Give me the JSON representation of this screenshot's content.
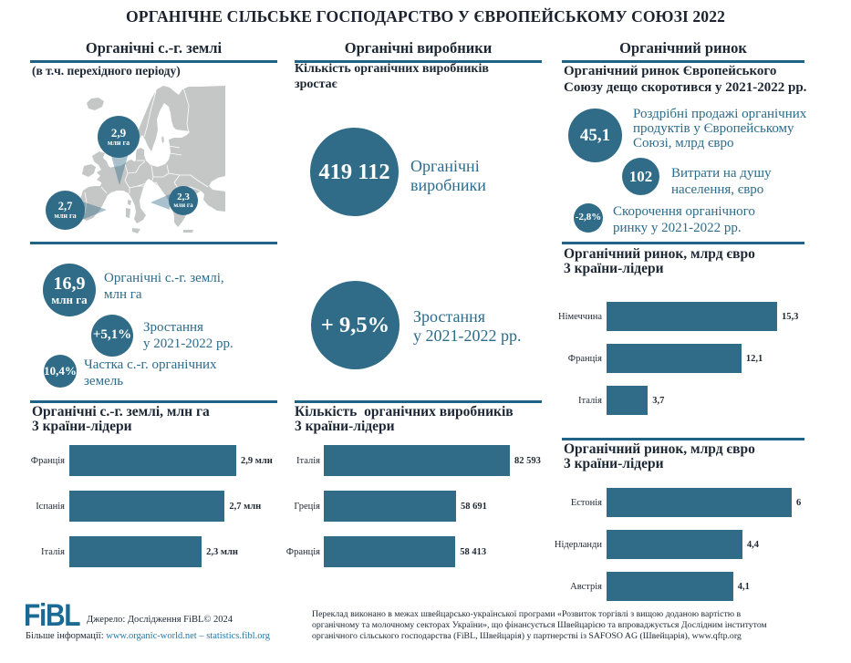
{
  "title": "ОРГАНІЧНЕ СІЛЬСЬКЕ ГОСПОДАРСТВО У ЄВРОПЕЙСЬКОМУ СОЮЗІ 2022",
  "colors": {
    "teal": "#306c88",
    "rule_teal": "#1f6486",
    "dark_text": "#1c2733",
    "label_teal": "#2c6b8b",
    "link_teal": "#2878a8",
    "map_gray": "#c5c6c6"
  },
  "columns": {
    "land": {
      "heading": "Органічні с.-г. землі",
      "note": "(в т.ч. перехідного періоду)",
      "map_pins": [
        {
          "value": "2,9",
          "unit": "млн га"
        },
        {
          "value": "2,7",
          "unit": "млн га"
        },
        {
          "value": "2,3",
          "unit": "млн га"
        }
      ],
      "stats": [
        {
          "value": "16,9",
          "unit": "млн га",
          "label_line1": "Органічні с.-г. землі,",
          "label_line2": "млн га"
        },
        {
          "value": "+5,1%",
          "label_line1": "Зростання",
          "label_line2": "у 2021-2022 рр."
        },
        {
          "value": "10,4%",
          "label_line1": "Частка с.-г. органічних",
          "label_line2": "земель"
        }
      ]
    },
    "producers": {
      "heading": "Органічні виробники",
      "note_line1": "Кількість органічних виробників",
      "note_line2": "зростає",
      "stats": [
        {
          "value": "419 112",
          "label_line1": "Органічні",
          "label_line2": "виробники"
        },
        {
          "value": "+ 9,5%",
          "label_line1": "Зростання",
          "label_line2": "у 2021-2022 рр."
        }
      ]
    },
    "market": {
      "heading": "Органічний ринок",
      "note_line1": "Органічний ринок Європейського",
      "note_line2": "Союзу дещо скоротився у 2021-2022 рр.",
      "stats": [
        {
          "value": "45,1",
          "label_line1": "Роздрібні продажі органічних",
          "label_line2": "продуктів у Європейському",
          "label_line3": "Союзі, млрд євро"
        },
        {
          "value": "102",
          "label_line1": "Витрати на душу",
          "label_line2": "населення, євро"
        },
        {
          "value": "-2,8%",
          "label_line1": "Скорочення органічного",
          "label_line2": "ринку у 2021-2022 рр."
        }
      ]
    }
  },
  "chart_data": [
    {
      "id": "land-leaders",
      "type": "bar",
      "title": "Органічні с.-г. землі, млн га",
      "subtitle": "3 країни-лідери",
      "categories": [
        "Франція",
        "Іспанія",
        "Італія"
      ],
      "values": [
        2.9,
        2.7,
        2.3
      ],
      "value_labels": [
        "2,9 млн",
        "2,7 млн",
        "2,3 млн"
      ],
      "orientation": "horizontal",
      "bar_color": "#306c88"
    },
    {
      "id": "producers-leaders",
      "type": "bar",
      "title": "Кількість  органічних виробників",
      "subtitle": "3 країни-лідери",
      "categories": [
        "Італія",
        "Греція",
        "Франція"
      ],
      "values": [
        82593,
        58691,
        58413
      ],
      "value_labels": [
        "82 593",
        "58 691",
        "58 413"
      ],
      "orientation": "horizontal",
      "bar_color": "#306c88"
    },
    {
      "id": "market-leaders",
      "type": "bar",
      "title": "Органічний ринок, млрд євро",
      "subtitle": "3 країни-лідери",
      "categories": [
        "Німеччина",
        "Франція",
        "Італія"
      ],
      "values": [
        15.3,
        12.1,
        3.7
      ],
      "value_labels": [
        "15,3",
        "12,1",
        "3,7"
      ],
      "orientation": "horizontal",
      "bar_color": "#306c88"
    },
    {
      "id": "market-leaders-2",
      "type": "bar",
      "title": "Органічний ринок, млрд євро",
      "subtitle": "3 країни-лідери",
      "categories": [
        "Естонія",
        "Нідерланди",
        "Австрія"
      ],
      "values": [
        6,
        4.4,
        4.1
      ],
      "value_labels": [
        "6",
        "4,4",
        "4,1"
      ],
      "orientation": "horizontal",
      "bar_color": "#306c88"
    }
  ],
  "footer": {
    "logo": "FiBL",
    "source": "Джерело: Дослідження FiBL© 2024",
    "more_info_label": "Більше інформації: ",
    "more_info_link": "www.organic-world.net – statistics.fibl.org",
    "translation_lines": [
      "Переклад виконано в межах швейцарсько-української програми «Розвиток торгівлі з вищою доданою вартістю в",
      "органічному та молочному секторах України», що фінансується Швейцарією та впроваджується Дослідним інститутом",
      "органічного сільського господарства (FiBL, Швейцарія) у партнерстві із SAFOSO AG (Швейцарія), www.qftp.org"
    ]
  }
}
